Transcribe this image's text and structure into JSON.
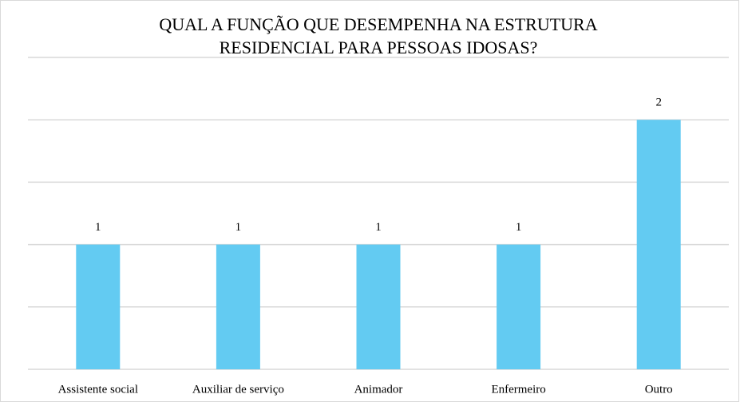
{
  "chart_data": {
    "type": "bar",
    "title": [
      "QUAL A FUNÇÃO QUE DESEMPENHA NA ESTRUTURA",
      "RESIDENCIAL PARA PESSOAS IDOSAS?"
    ],
    "categories": [
      "Assistente social",
      "Auxiliar de serviço",
      "Animador",
      "Enfermeiro",
      "Outro"
    ],
    "values": [
      1,
      1,
      1,
      1,
      2
    ],
    "color": "#63cbf2",
    "ylim": [
      0,
      2.5
    ],
    "yticks": [
      0,
      0.5,
      1,
      1.5,
      2,
      2.5
    ],
    "grid": true
  }
}
